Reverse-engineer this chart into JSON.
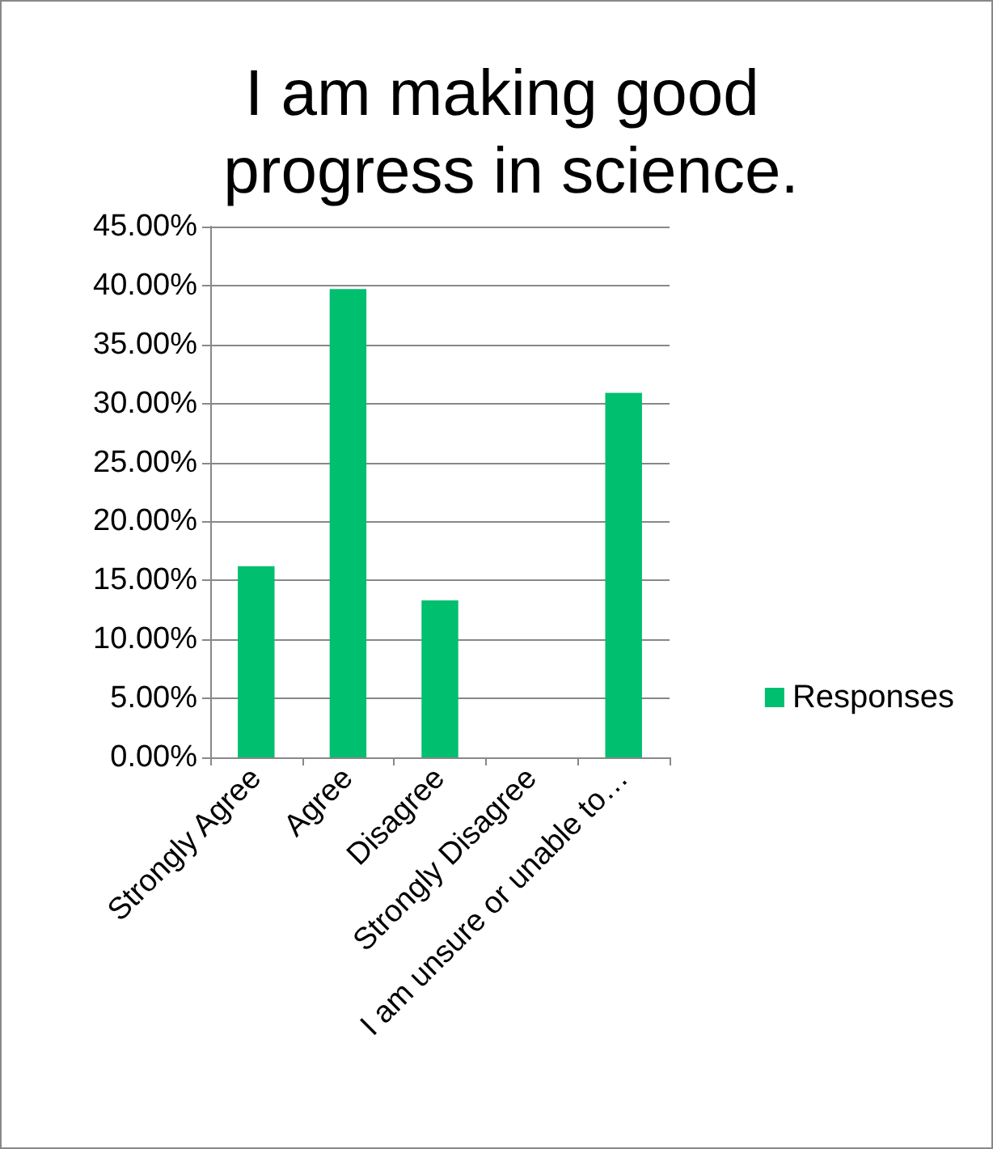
{
  "chart_data": {
    "type": "bar",
    "title": "I am making good progress in science.",
    "categories": [
      "Strongly Agree",
      "Agree",
      "Disagree",
      "Strongly Disagree",
      "I am unsure or unable to…"
    ],
    "series": [
      {
        "name": "Responses",
        "color": "#00bf6f",
        "values": [
          16.2,
          39.7,
          13.3,
          0,
          30.9
        ]
      }
    ],
    "ylim": [
      0,
      45
    ],
    "yticks": [
      {
        "value": 0,
        "label": "0.00%"
      },
      {
        "value": 5,
        "label": "5.00%"
      },
      {
        "value": 10,
        "label": "10.00%"
      },
      {
        "value": 15,
        "label": "15.00%"
      },
      {
        "value": 20,
        "label": "20.00%"
      },
      {
        "value": 25,
        "label": "25.00%"
      },
      {
        "value": 30,
        "label": "30.00%"
      },
      {
        "value": 35,
        "label": "35.00%"
      },
      {
        "value": 40,
        "label": "40.00%"
      },
      {
        "value": 45,
        "label": "45.00%"
      }
    ],
    "grid": "y",
    "legend": "right"
  }
}
